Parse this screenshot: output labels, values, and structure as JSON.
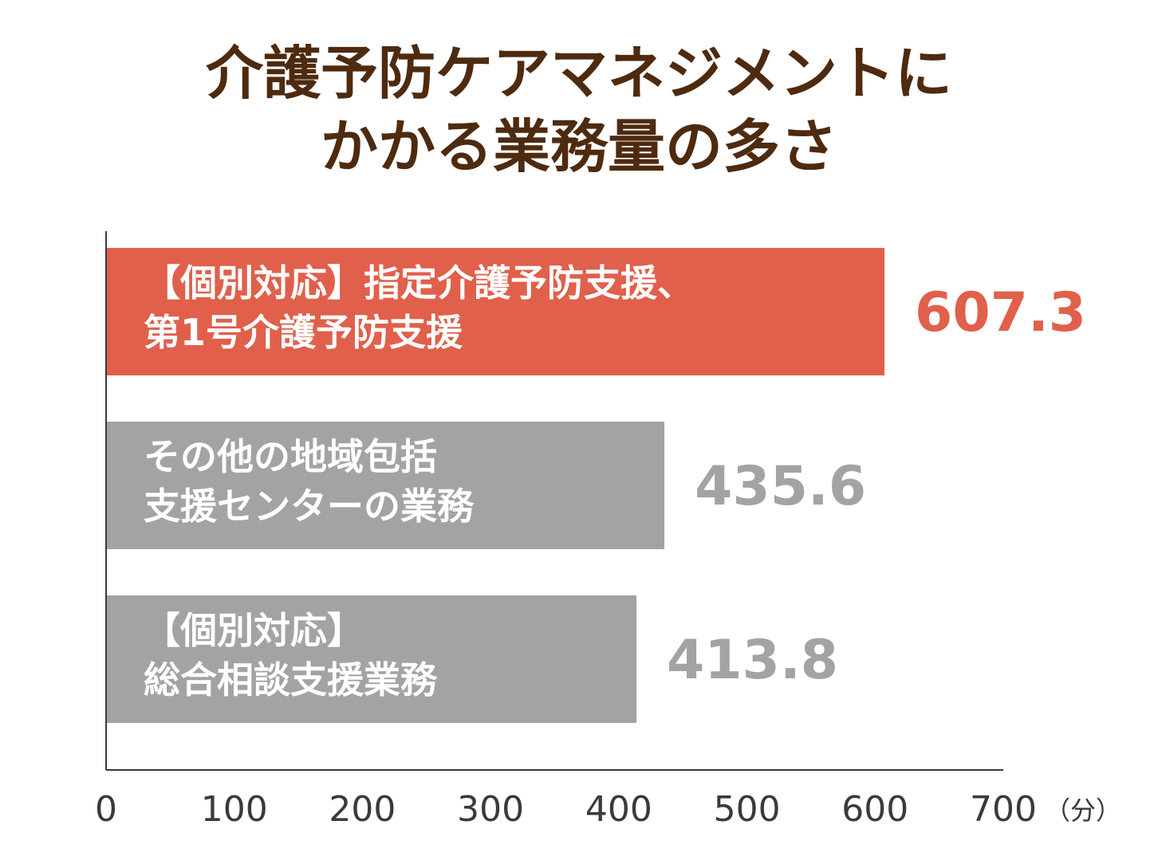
{
  "chart_data": {
    "type": "bar",
    "orientation": "horizontal",
    "title_lines": [
      "介護予防ケアマネジメントに",
      "かかる業務量の多さ"
    ],
    "categories": [
      [
        "【個別対応】指定介護予防支援、",
        "第1号介護予防支援"
      ],
      [
        "その他の地域包括",
        "支援センターの業務"
      ],
      [
        "【個別対応】",
        "総合相談支援業務"
      ]
    ],
    "values": [
      607.3,
      435.6,
      413.8
    ],
    "value_labels": [
      "607.3",
      "435.6",
      "413.8"
    ],
    "bar_colors": [
      "#e0604b",
      "#a3a3a3",
      "#a3a3a3"
    ],
    "value_label_colors": [
      "#e0604b",
      "#a3a3a3",
      "#a3a3a3"
    ],
    "xlim": [
      0,
      700
    ],
    "x_ticks": [
      "0",
      "100",
      "200",
      "300",
      "400",
      "500",
      "600",
      "700"
    ],
    "x_unit": "（分）",
    "grid": false
  }
}
